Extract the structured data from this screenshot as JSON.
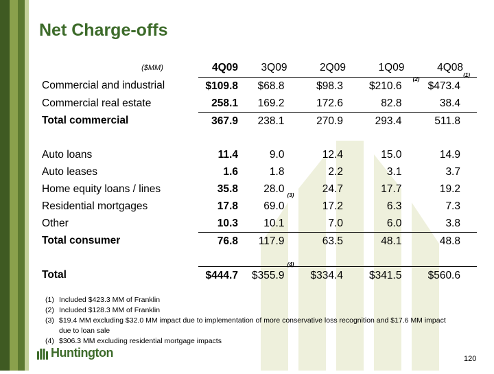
{
  "slide": {
    "title": "Net Charge-offs",
    "units": "($MM)",
    "page_number": "120",
    "logo_text": "Huntington"
  },
  "table": {
    "columns": [
      "4Q09",
      "3Q09",
      "2Q09",
      "1Q09",
      "4Q08"
    ],
    "rows": [
      {
        "label": "Commercial and industrial",
        "values": [
          "$109.8",
          "$68.8",
          "$98.3",
          "$210.6",
          "$473.4"
        ]
      },
      {
        "label": "Commercial real estate",
        "values": [
          "258.1",
          "169.2",
          "172.6",
          "82.8",
          "38.4"
        ]
      },
      {
        "label": "Total commercial",
        "values": [
          "367.9",
          "238.1",
          "270.9",
          "293.4",
          "511.8"
        ]
      },
      {
        "label": "Auto loans",
        "values": [
          "11.4",
          "9.0",
          "12.4",
          "15.0",
          "14.9"
        ]
      },
      {
        "label": "Auto leases",
        "values": [
          "1.6",
          "1.8",
          "2.2",
          "3.1",
          "3.7"
        ]
      },
      {
        "label": "Home equity loans / lines",
        "values": [
          "35.8",
          "28.0",
          "24.7",
          "17.7",
          "19.2"
        ]
      },
      {
        "label": "Residential mortgages",
        "values": [
          "17.8",
          "69.0",
          "17.2",
          "6.3",
          "7.3"
        ]
      },
      {
        "label": "Other",
        "values": [
          "10.3",
          "10.1",
          "7.0",
          "6.0",
          "3.8"
        ]
      },
      {
        "label": "Total consumer",
        "values": [
          "76.8",
          "117.9",
          "63.5",
          "48.1",
          "48.8"
        ]
      },
      {
        "label": "Total",
        "values": [
          "$444.7",
          "$355.9",
          "$334.4",
          "$341.5",
          "$560.6"
        ]
      }
    ],
    "footnote_marks": {
      "ci_1q09": "(2)",
      "ci_4q08": "(1)",
      "resmort_3q09": "(3)",
      "total_3q09": "(4)"
    }
  },
  "footnotes": [
    {
      "mark": "(1)",
      "text": "Included $423.3 MM of Franklin"
    },
    {
      "mark": "(2)",
      "text": "Included $128.3 MM of Franklin"
    },
    {
      "mark": "(3)",
      "text": "$19.4 MM excluding $32.0 MM impact due to implementation of more conservative loss recognition and $17.6 MM impact"
    },
    {
      "mark": "",
      "text": "due to loan sale"
    },
    {
      "mark": "(4)",
      "text": "$306.3 MM excluding residential mortgage impacts"
    }
  ]
}
